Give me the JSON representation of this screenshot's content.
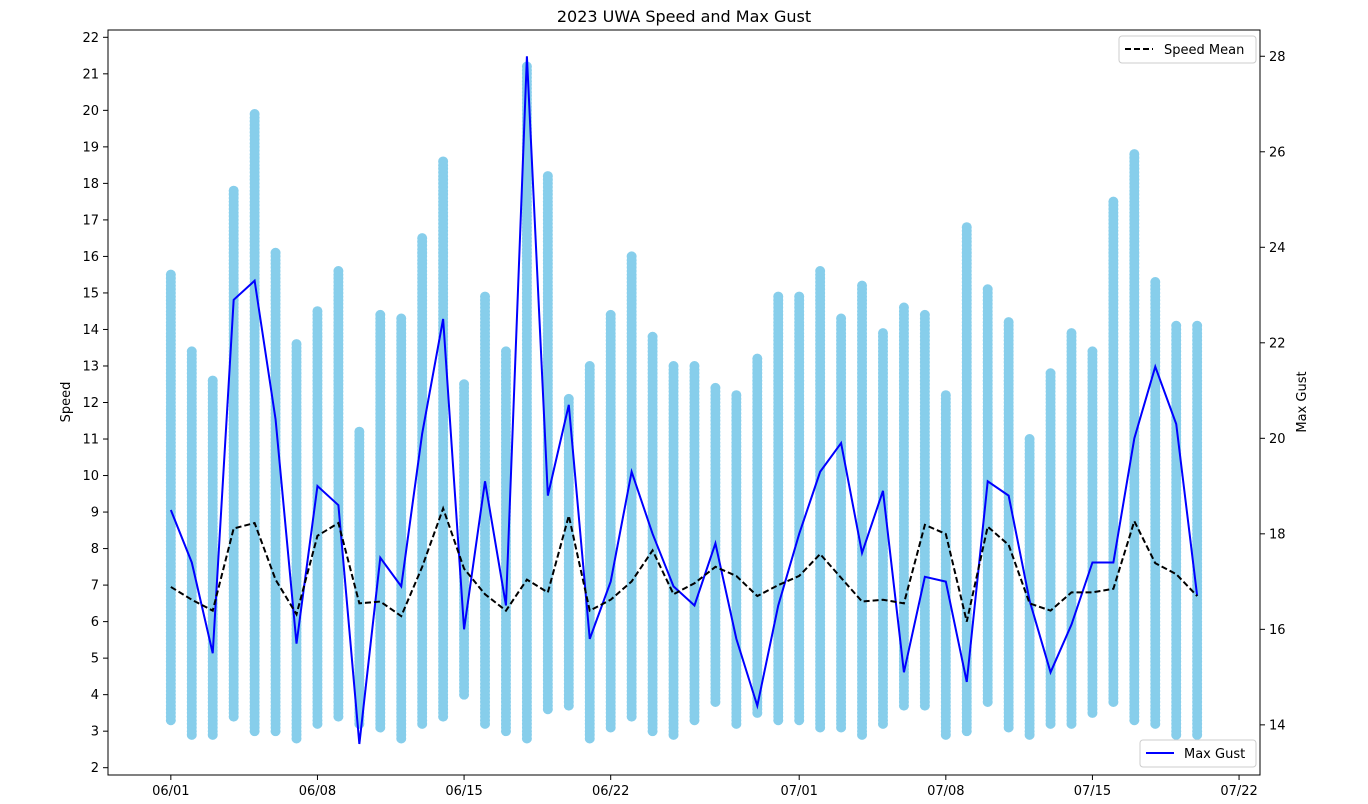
{
  "chart_data": {
    "type": "scatter",
    "title": "2023 UWA Speed and Max Gust",
    "xlabel": "",
    "ylabel": "Speed",
    "y2label": "Max Gust",
    "xlim": [
      "2023-05-29",
      "2023-07-23"
    ],
    "ylim": [
      1.8,
      22.2
    ],
    "y2lim": [
      12.95,
      28.55
    ],
    "x_ticks": [
      "06/01",
      "06/08",
      "06/15",
      "06/22",
      "07/01",
      "07/08",
      "07/15",
      "07/22"
    ],
    "y_ticks": [
      2,
      3,
      4,
      5,
      6,
      7,
      8,
      9,
      10,
      11,
      12,
      13,
      14,
      15,
      16,
      17,
      18,
      19,
      20,
      21,
      22
    ],
    "y2_ticks": [
      14,
      16,
      18,
      20,
      22,
      24,
      26,
      28
    ],
    "grid": false,
    "colors": {
      "scatter": "#87CEEB",
      "speed_mean": "#000000",
      "max_gust": "#0000FF"
    },
    "legends": [
      {
        "position": "top-right",
        "entries": [
          {
            "label": "Speed Mean",
            "style": "dashed",
            "color": "#000000"
          }
        ]
      },
      {
        "position": "bottom-right",
        "entries": [
          {
            "label": "Max Gust",
            "style": "solid",
            "color": "#0000FF"
          }
        ]
      }
    ],
    "dates": [
      "2023-06-01",
      "2023-06-02",
      "2023-06-03",
      "2023-06-04",
      "2023-06-05",
      "2023-06-06",
      "2023-06-07",
      "2023-06-08",
      "2023-06-09",
      "2023-06-10",
      "2023-06-11",
      "2023-06-12",
      "2023-06-13",
      "2023-06-14",
      "2023-06-15",
      "2023-06-16",
      "2023-06-17",
      "2023-06-18",
      "2023-06-19",
      "2023-06-20",
      "2023-06-21",
      "2023-06-22",
      "2023-06-23",
      "2023-06-24",
      "2023-06-25",
      "2023-06-26",
      "2023-06-27",
      "2023-06-28",
      "2023-06-29",
      "2023-06-30",
      "2023-07-01",
      "2023-07-02",
      "2023-07-03",
      "2023-07-04",
      "2023-07-05",
      "2023-07-06",
      "2023-07-07",
      "2023-07-08",
      "2023-07-09",
      "2023-07-10",
      "2023-07-11",
      "2023-07-12",
      "2023-07-13",
      "2023-07-14",
      "2023-07-15",
      "2023-07-16",
      "2023-07-17",
      "2023-07-18",
      "2023-07-19",
      "2023-07-20"
    ],
    "speed_min": [
      3.3,
      2.9,
      2.9,
      3.4,
      3.0,
      3.0,
      2.8,
      3.2,
      3.4,
      3.2,
      3.1,
      2.8,
      3.2,
      3.4,
      4.0,
      3.2,
      3.0,
      2.8,
      3.6,
      3.7,
      2.8,
      3.1,
      3.4,
      3.0,
      2.9,
      3.3,
      3.8,
      3.2,
      3.5,
      3.3,
      3.3,
      3.1,
      3.1,
      2.9,
      3.2,
      3.7,
      3.7,
      2.9,
      3.0,
      3.8,
      3.1,
      2.9,
      3.2,
      3.2,
      3.5,
      3.8,
      3.3,
      3.2,
      2.9,
      2.9
    ],
    "speed_max": [
      15.5,
      13.4,
      12.6,
      17.8,
      19.9,
      16.1,
      13.6,
      14.5,
      15.6,
      11.2,
      14.4,
      14.3,
      16.5,
      18.6,
      12.5,
      14.9,
      13.4,
      21.2,
      18.2,
      12.1,
      13.0,
      14.4,
      16.0,
      13.8,
      13.0,
      13.0,
      12.4,
      12.2,
      13.2,
      14.9,
      14.9,
      15.6,
      14.3,
      15.2,
      13.9,
      14.6,
      14.4,
      12.2,
      16.8,
      15.1,
      14.2,
      11.0,
      12.8,
      13.9,
      13.4,
      17.5,
      18.8,
      15.3,
      14.1,
      14.1
    ],
    "speed_mean": [
      6.95,
      6.6,
      6.3,
      8.55,
      8.7,
      7.15,
      6.2,
      8.35,
      8.7,
      6.5,
      6.55,
      6.15,
      7.5,
      9.1,
      7.45,
      6.75,
      6.3,
      7.15,
      6.8,
      8.9,
      6.3,
      6.6,
      7.1,
      7.95,
      6.75,
      7.05,
      7.5,
      7.25,
      6.7,
      7.0,
      7.25,
      7.85,
      7.2,
      6.55,
      6.6,
      6.5,
      8.65,
      8.4,
      6.0,
      8.6,
      8.1,
      6.5,
      6.3,
      6.8,
      6.8,
      6.9,
      8.75,
      7.6,
      7.3,
      6.7
    ],
    "max_gust": [
      18.5,
      17.4,
      15.5,
      22.9,
      23.3,
      20.4,
      15.7,
      19.0,
      18.6,
      13.6,
      17.5,
      16.9,
      20.1,
      22.5,
      16.0,
      19.1,
      16.5,
      28.0,
      18.8,
      20.7,
      15.8,
      17.0,
      19.3,
      18.0,
      16.9,
      16.5,
      17.8,
      15.8,
      14.4,
      16.5,
      18.0,
      19.3,
      19.9,
      17.6,
      18.9,
      15.1,
      17.1,
      17.0,
      14.9,
      19.1,
      18.8,
      16.6,
      15.1,
      16.1,
      17.4,
      17.4,
      20.0,
      21.5,
      20.3,
      16.7
    ]
  }
}
